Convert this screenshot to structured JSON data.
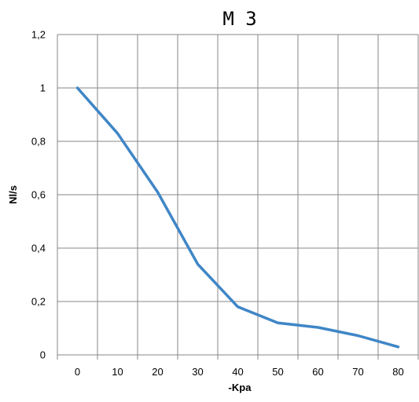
{
  "chart_data": {
    "type": "line",
    "title": "M 3",
    "xlabel": "-Kpa",
    "ylabel": "Nl/s",
    "x": [
      0,
      10,
      20,
      30,
      40,
      50,
      60,
      70,
      80
    ],
    "x_tick_labels": [
      "0",
      "10",
      "20",
      "30",
      "40",
      "50",
      "60",
      "70",
      "80"
    ],
    "y_tick_labels": [
      "0",
      "0,2",
      "0,4",
      "0,6",
      "0,8",
      "1",
      "1,2"
    ],
    "y_ticks": [
      0,
      0.2,
      0.4,
      0.6,
      0.8,
      1.0,
      1.2
    ],
    "ylim": [
      0,
      1.2
    ],
    "grid": true,
    "legend": "none",
    "series": [
      {
        "values": [
          1.0,
          0.83,
          0.61,
          0.34,
          0.18,
          0.12,
          0.103,
          0.072,
          0.03
        ],
        "color": "#3f86c6"
      }
    ]
  }
}
